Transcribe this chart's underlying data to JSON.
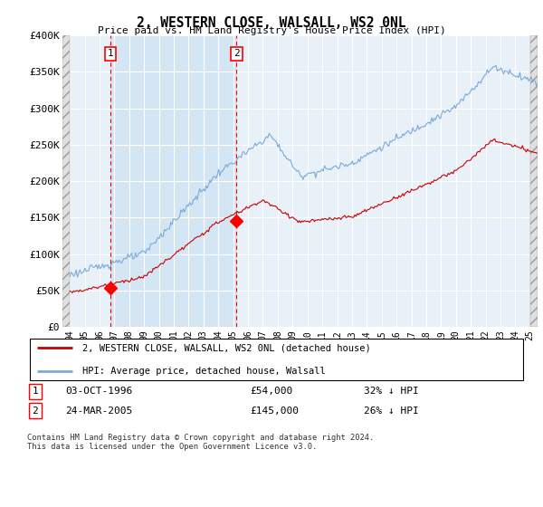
{
  "title": "2, WESTERN CLOSE, WALSALL, WS2 0NL",
  "subtitle": "Price paid vs. HM Land Registry's House Price Index (HPI)",
  "ylabel_ticks": [
    "£0",
    "£50K",
    "£100K",
    "£150K",
    "£200K",
    "£250K",
    "£300K",
    "£350K",
    "£400K"
  ],
  "ylabel_values": [
    0,
    50000,
    100000,
    150000,
    200000,
    250000,
    300000,
    350000,
    400000
  ],
  "ylim": [
    0,
    400000
  ],
  "xlim_start": 1993.5,
  "xlim_end": 2025.5,
  "hpi_color": "#7aabdb",
  "price_color": "#cc0000",
  "plot_bg": "#e8f0f8",
  "sale1_x": 1996.75,
  "sale1_y": 54000,
  "sale2_x": 2005.23,
  "sale2_y": 145000,
  "legend_line1": "2, WESTERN CLOSE, WALSALL, WS2 0NL (detached house)",
  "legend_line2": "HPI: Average price, detached house, Walsall",
  "footer": "Contains HM Land Registry data © Crown copyright and database right 2024.\nThis data is licensed under the Open Government Licence v3.0.",
  "xtick_years": [
    1994,
    1995,
    1996,
    1997,
    1998,
    1999,
    2000,
    2001,
    2002,
    2003,
    2004,
    2005,
    2006,
    2007,
    2008,
    2009,
    2010,
    2011,
    2012,
    2013,
    2014,
    2015,
    2016,
    2017,
    2018,
    2019,
    2020,
    2021,
    2022,
    2023,
    2024,
    2025
  ]
}
